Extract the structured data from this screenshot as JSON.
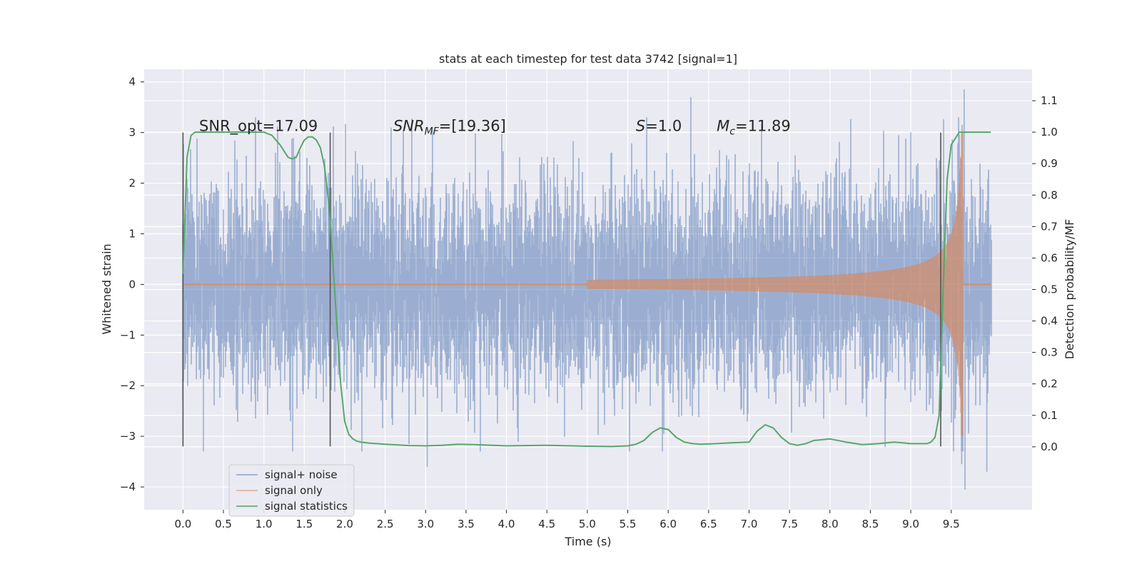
{
  "chart_data": {
    "type": "line",
    "title": "stats at each timestep for test data 3742 [signal=1]",
    "xlabel": "Time (s)",
    "ylabel_left": "Whitened strain",
    "ylabel_right": "Detection probability/MF",
    "xlim": [
      -0.48,
      10.5
    ],
    "ylim_left": [
      -4.45,
      4.25
    ],
    "ylim_right": [
      -0.2,
      1.2
    ],
    "grid": true,
    "legend_placement": "lower-left",
    "x_ticks": [
      "0.0",
      "0.5",
      "1.0",
      "1.5",
      "2.0",
      "2.5",
      "3.0",
      "3.5",
      "4.0",
      "4.5",
      "5.0",
      "5.5",
      "6.0",
      "6.5",
      "7.0",
      "7.5",
      "8.0",
      "8.5",
      "9.0",
      "9.5"
    ],
    "y_left_ticks": [
      "4",
      "3",
      "2",
      "1",
      "0",
      "−1",
      "−2",
      "−3",
      "−4"
    ],
    "y_right_ticks": [
      "1.1",
      "1.0",
      "0.9",
      "0.8",
      "0.7",
      "0.6",
      "0.5",
      "0.4",
      "0.3",
      "0.2",
      "0.1",
      "0.0"
    ],
    "annotations": {
      "snr_opt": "SNR_opt=17.09",
      "snr_mf_base": "SNR",
      "snr_mf_sub": "MF",
      "snr_mf_rest": "=[19.36]",
      "s_base": "S",
      "s_rest": "=1.0",
      "mc_base": "M",
      "mc_sub": "c",
      "mc_rest": "=11.89"
    },
    "annotation_x": [
      0.2,
      2.6,
      5.6,
      6.6
    ],
    "annotation_y": 3.0,
    "vertical_markers_x": [
      0.0,
      1.82,
      9.37
    ],
    "vertical_markers_ylim": [
      -3.2,
      3.0
    ],
    "series": [
      {
        "name": "signal+ noise",
        "color": "#4c72b0",
        "t_range": [
          0.0,
          9.99
        ],
        "noise_band_sigma": 1.0,
        "extremes": [
          {
            "x": 9.66,
            "y": 3.85
          },
          {
            "x": 9.67,
            "y": -4.05
          },
          {
            "x": 6.28,
            "y": 3.7
          },
          {
            "x": 3.02,
            "y": -3.6
          },
          {
            "x": 9.63,
            "y": -3.55
          },
          {
            "x": 9.94,
            "y": -3.7
          }
        ]
      },
      {
        "name": "signal only",
        "color": "#dd8452",
        "chirp_start": 5.0,
        "chirp_peak_time": 9.65,
        "peak_amplitude": 3.0,
        "end_amplitude": 0.02
      },
      {
        "name": "signal statistics",
        "color": "#55a868",
        "axis": "right",
        "x": [
          0.0,
          0.05,
          0.1,
          0.15,
          0.2,
          0.3,
          0.4,
          0.5,
          0.6,
          0.7,
          0.8,
          0.9,
          1.0,
          1.1,
          1.2,
          1.3,
          1.35,
          1.4,
          1.45,
          1.5,
          1.55,
          1.6,
          1.65,
          1.7,
          1.75,
          1.8,
          1.85,
          1.9,
          1.95,
          2.0,
          2.05,
          2.1,
          2.15,
          2.2,
          2.3,
          2.5,
          2.8,
          3.0,
          3.2,
          3.4,
          3.6,
          4.0,
          4.5,
          5.0,
          5.3,
          5.5,
          5.6,
          5.7,
          5.8,
          5.9,
          6.0,
          6.1,
          6.2,
          6.3,
          6.4,
          6.6,
          6.8,
          7.0,
          7.1,
          7.2,
          7.3,
          7.4,
          7.5,
          7.6,
          7.7,
          7.8,
          8.0,
          8.2,
          8.4,
          8.6,
          8.8,
          9.0,
          9.2,
          9.25,
          9.3,
          9.35,
          9.4,
          9.45,
          9.5,
          9.6,
          9.7,
          9.99
        ],
        "values": [
          0.55,
          0.92,
          0.99,
          1.0,
          1.0,
          1.0,
          1.0,
          1.0,
          1.0,
          1.0,
          1.0,
          1.0,
          1.0,
          0.99,
          0.96,
          0.92,
          0.915,
          0.92,
          0.95,
          0.975,
          0.985,
          0.985,
          0.975,
          0.95,
          0.89,
          0.78,
          0.6,
          0.4,
          0.2,
          0.08,
          0.04,
          0.025,
          0.018,
          0.015,
          0.012,
          0.008,
          0.004,
          0.003,
          0.005,
          0.008,
          0.007,
          0.003,
          0.005,
          0.002,
          0.001,
          0.003,
          0.008,
          0.02,
          0.045,
          0.06,
          0.055,
          0.03,
          0.015,
          0.01,
          0.008,
          0.01,
          0.013,
          0.015,
          0.05,
          0.07,
          0.06,
          0.03,
          0.01,
          0.005,
          0.01,
          0.02,
          0.025,
          0.015,
          0.007,
          0.01,
          0.015,
          0.01,
          0.01,
          0.015,
          0.03,
          0.1,
          0.5,
          0.85,
          0.96,
          1.0,
          1.0,
          1.0
        ]
      }
    ]
  }
}
